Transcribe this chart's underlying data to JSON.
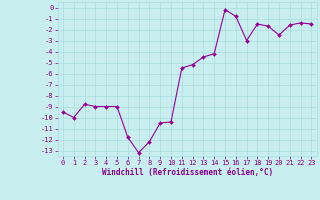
{
  "x": [
    0,
    1,
    2,
    3,
    4,
    5,
    6,
    7,
    8,
    9,
    10,
    11,
    12,
    13,
    14,
    15,
    16,
    17,
    18,
    19,
    20,
    21,
    22,
    23
  ],
  "y": [
    -9.5,
    -10.0,
    -8.8,
    -9.0,
    -9.0,
    -9.0,
    -11.8,
    -13.2,
    -12.2,
    -10.5,
    -10.4,
    -5.5,
    -5.2,
    -4.5,
    -4.2,
    -0.2,
    -0.8,
    -3.0,
    -1.5,
    -1.7,
    -2.5,
    -1.6,
    -1.4,
    -1.5
  ],
  "xlabel": "Windchill (Refroidissement éolien,°C)",
  "line_color": "#990099",
  "marker": "D",
  "marker_size": 2.0,
  "bg_color": "#c8eef0",
  "grid_color": "#aadddd",
  "ylim": [
    -13.5,
    0.5
  ],
  "xlim": [
    -0.5,
    23.5
  ],
  "yticks": [
    0,
    -1,
    -2,
    -3,
    -4,
    -5,
    -6,
    -7,
    -8,
    -9,
    -10,
    -11,
    -12,
    -13
  ],
  "xtick_labels": [
    "0",
    "1",
    "2",
    "3",
    "4",
    "5",
    "6",
    "7",
    "8",
    "9",
    "10",
    "11",
    "12",
    "13",
    "14",
    "15",
    "16",
    "17",
    "18",
    "19",
    "20",
    "21",
    "22",
    "23"
  ],
  "tick_color": "#880088",
  "label_color": "#880088",
  "label_fontsize": 5.5,
  "tick_fontsize": 5.0
}
